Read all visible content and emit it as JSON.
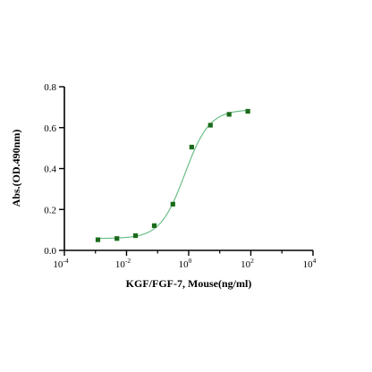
{
  "chart_data": {
    "type": "scatter",
    "xlabel": "KGF/FGF-7, Mouse(ng/ml)",
    "ylabel": "Abs.(OD.490nm)",
    "x_scale": "log",
    "xlim": [
      0.0001,
      10000
    ],
    "ylim": [
      0,
      0.8
    ],
    "x_ticks": [
      {
        "base": "10",
        "exp": "-4"
      },
      {
        "base": "10",
        "exp": "-2"
      },
      {
        "base": "10",
        "exp": "0"
      },
      {
        "base": "10",
        "exp": "2"
      },
      {
        "base": "10",
        "exp": "4"
      }
    ],
    "x_tick_values": [
      0.0001,
      0.01,
      1,
      100,
      10000
    ],
    "y_ticks": [
      "0.0",
      "0.2",
      "0.4",
      "0.6",
      "0.8"
    ],
    "y_tick_values": [
      0,
      0.2,
      0.4,
      0.6,
      0.8
    ],
    "series": [
      {
        "x": [
          0.0012,
          0.0049,
          0.0195,
          0.078,
          0.31,
          1.25,
          5,
          20,
          80
        ],
        "y": [
          0.052,
          0.058,
          0.072,
          0.121,
          0.226,
          0.505,
          0.612,
          0.665,
          0.68
        ],
        "marker": "square",
        "color": "#1a6b1a"
      }
    ],
    "fit_curve": {
      "model": "4PL",
      "bottom": 0.058,
      "top": 0.688,
      "ec50": 0.75,
      "hill": 1.1,
      "color": "#6bbf8a"
    },
    "grid": false,
    "legend": "none"
  }
}
